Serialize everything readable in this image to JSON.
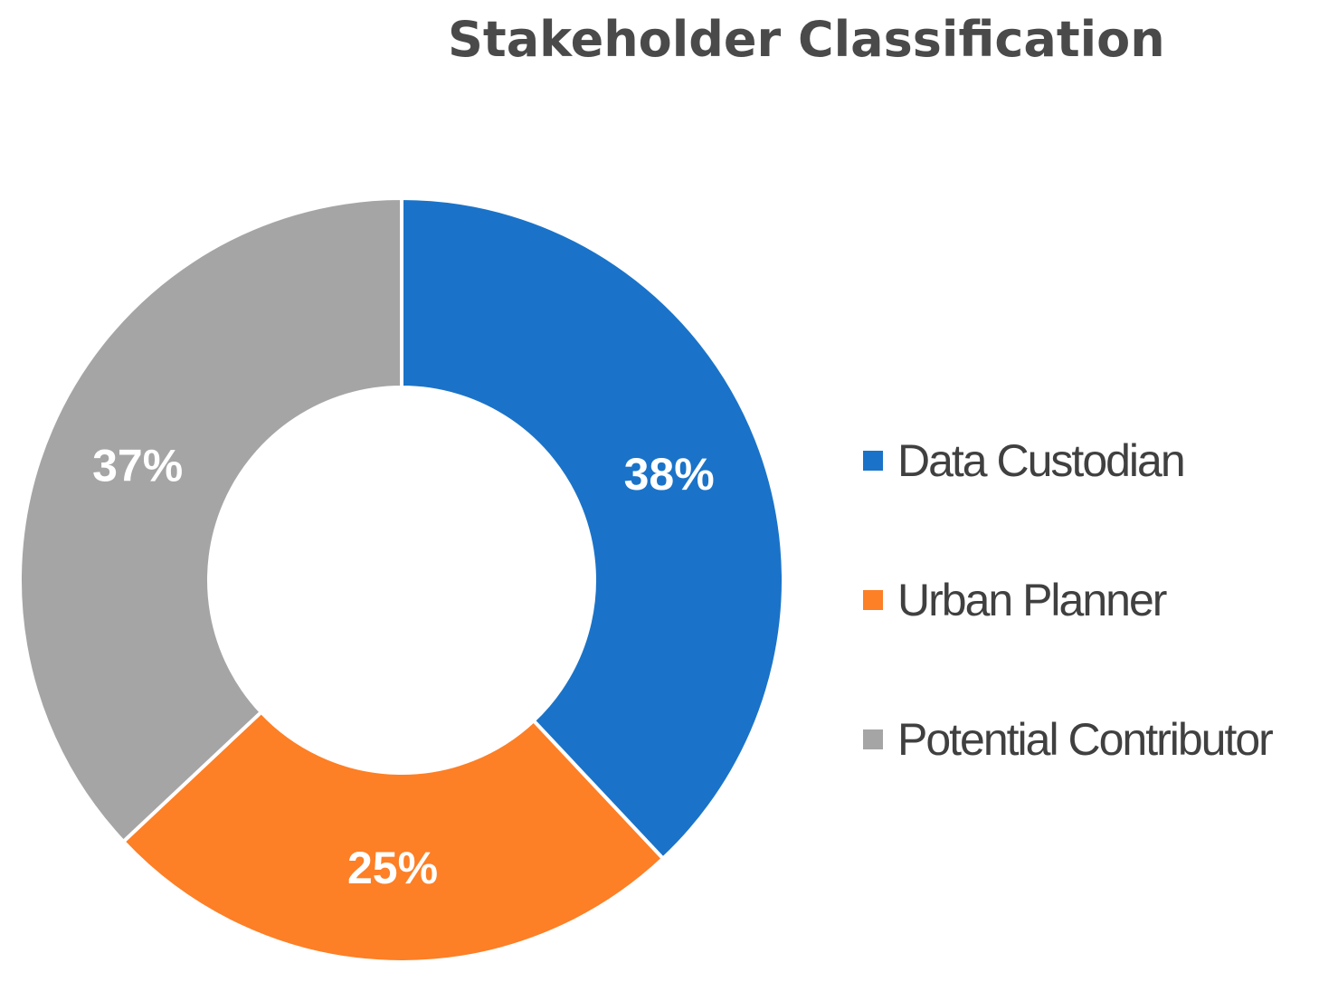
{
  "chart_data": {
    "type": "pie",
    "variant": "donut",
    "title": "Stakeholder Classification",
    "legend_position": "right",
    "slices": [
      {
        "name": "Data Custodian",
        "value": 38,
        "label": "38%",
        "color": "#1a73c8"
      },
      {
        "name": "Urban Planner",
        "value": 25,
        "label": "25%",
        "color": "#fd7f26"
      },
      {
        "name": "Potential Contributor",
        "value": 37,
        "label": "37%",
        "color": "#a5a5a5"
      }
    ]
  }
}
